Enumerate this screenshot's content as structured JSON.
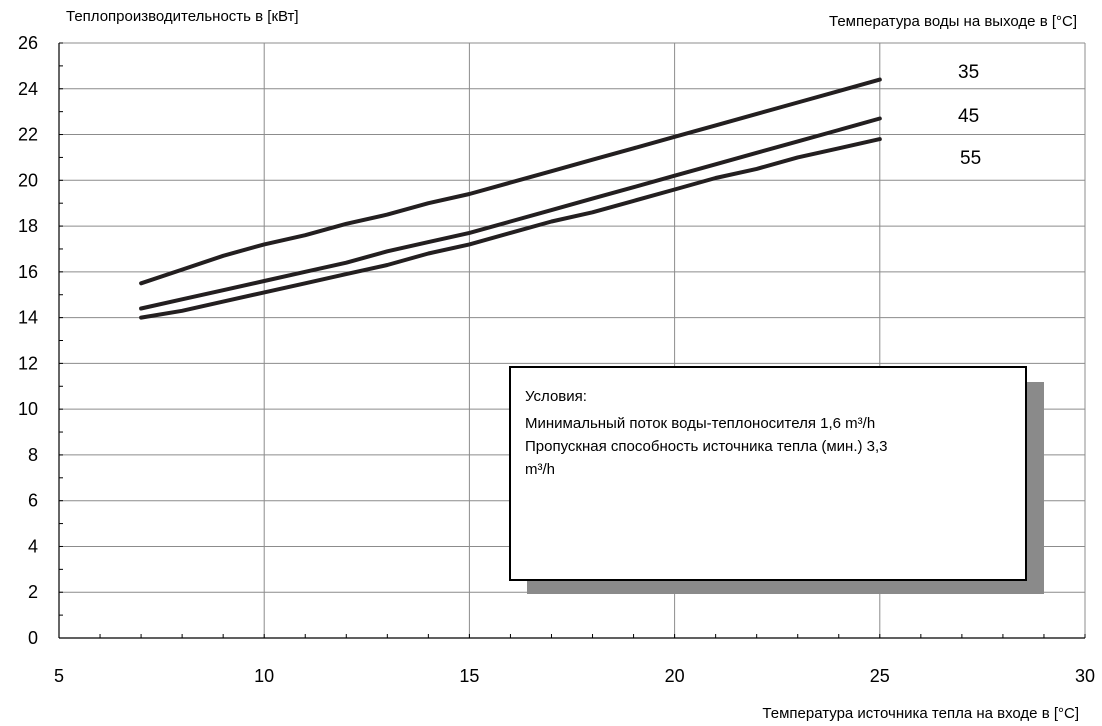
{
  "chart_data": {
    "type": "line",
    "ylabel": "Теплопроизводительность в [кВт]",
    "xlabel": "Температура источника тепла на входе в [°C]",
    "legend_title": "Температура воды на выходе в [°C]",
    "xlim": [
      5,
      30
    ],
    "ylim": [
      0,
      26
    ],
    "x_ticks": [
      5,
      10,
      15,
      20,
      25,
      30
    ],
    "y_ticks": [
      0,
      2,
      4,
      6,
      8,
      10,
      12,
      14,
      16,
      18,
      20,
      22,
      24,
      26
    ],
    "grid": true,
    "series": [
      {
        "name": "35",
        "x": [
          7,
          8,
          9,
          10,
          11,
          12,
          13,
          14,
          15,
          16,
          17,
          18,
          19,
          20,
          21,
          22,
          23,
          24,
          25
        ],
        "y": [
          15.5,
          16.1,
          16.7,
          17.2,
          17.6,
          18.1,
          18.5,
          19.0,
          19.4,
          19.9,
          20.4,
          20.9,
          21.4,
          21.9,
          22.4,
          22.9,
          23.4,
          23.9,
          24.4
        ]
      },
      {
        "name": "45",
        "x": [
          7,
          8,
          9,
          10,
          11,
          12,
          13,
          14,
          15,
          16,
          17,
          18,
          19,
          20,
          21,
          22,
          23,
          24,
          25
        ],
        "y": [
          14.4,
          14.8,
          15.2,
          15.6,
          16.0,
          16.4,
          16.9,
          17.3,
          17.7,
          18.2,
          18.7,
          19.2,
          19.7,
          20.2,
          20.7,
          21.2,
          21.7,
          22.2,
          22.7
        ]
      },
      {
        "name": "55",
        "x": [
          7,
          8,
          9,
          10,
          11,
          12,
          13,
          14,
          15,
          16,
          17,
          18,
          19,
          20,
          21,
          22,
          23,
          24,
          25
        ],
        "y": [
          14.0,
          14.3,
          14.7,
          15.1,
          15.5,
          15.9,
          16.3,
          16.8,
          17.2,
          17.7,
          18.2,
          18.6,
          19.1,
          19.6,
          20.1,
          20.5,
          21.0,
          21.4,
          21.8
        ]
      }
    ],
    "annotation": {
      "title": "Условия:",
      "lines": [
        "Минимальный поток воды-теплоносителя 1,6 m³/h",
        "Пропускная способность источника тепла (мин.) 3,3",
        "m³/h"
      ]
    },
    "colors": {
      "line": "#231f20",
      "grid": "#8c8c8c",
      "shadow": "#8a8a8a"
    }
  }
}
